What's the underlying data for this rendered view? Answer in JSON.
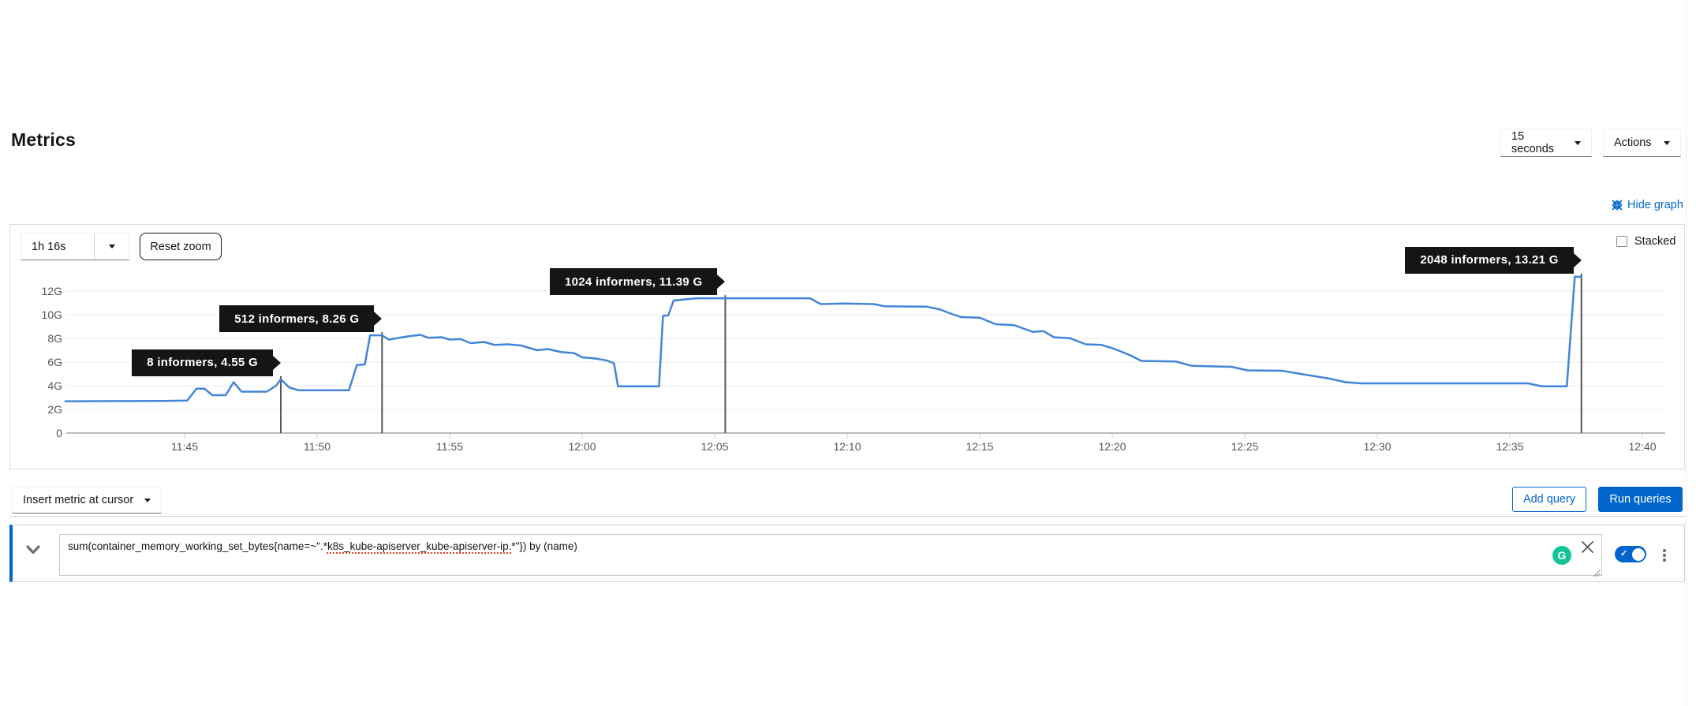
{
  "page": {
    "title": "Metrics"
  },
  "toolbar_top": {
    "interval_select": "15 seconds",
    "actions_label": "Actions"
  },
  "graph_header": {
    "hide_graph": "Hide graph"
  },
  "graph_controls": {
    "timespan": "1h 16s",
    "reset_zoom": "Reset zoom",
    "stacked_label": "Stacked",
    "stacked_checked": false
  },
  "chart_data": {
    "type": "line",
    "title": "",
    "x_unit": "minutes since 11:40",
    "y_unit": "G (bytes, working set memory)",
    "ylim": [
      0,
      14
    ],
    "grid": true,
    "line_color": "#4285d6",
    "annotation_line_color": "#55565a",
    "y_ticks": [
      {
        "value": 0,
        "label": "0"
      },
      {
        "value": 2,
        "label": "2G"
      },
      {
        "value": 4,
        "label": "4G"
      },
      {
        "value": 6,
        "label": "6G"
      },
      {
        "value": 8,
        "label": "8G"
      },
      {
        "value": 10,
        "label": "10G"
      },
      {
        "value": 12,
        "label": "12G"
      }
    ],
    "x_ticks": [
      {
        "min": 5,
        "label": "11:45"
      },
      {
        "min": 10,
        "label": "11:50"
      },
      {
        "min": 15,
        "label": "11:55"
      },
      {
        "min": 20,
        "label": "12:00"
      },
      {
        "min": 25,
        "label": "12:05"
      },
      {
        "min": 30,
        "label": "12:10"
      },
      {
        "min": 35,
        "label": "12:15"
      },
      {
        "min": 40,
        "label": "12:20"
      },
      {
        "min": 45,
        "label": "12:25"
      },
      {
        "min": 50,
        "label": "12:30"
      },
      {
        "min": 55,
        "label": "12:35"
      },
      {
        "min": 60,
        "label": "12:40"
      }
    ],
    "points": [
      [
        0.5,
        2.68
      ],
      [
        2.0,
        2.7
      ],
      [
        4.2,
        2.72
      ],
      [
        5.1,
        2.75
      ],
      [
        5.45,
        3.75
      ],
      [
        5.75,
        3.75
      ],
      [
        6.05,
        3.2
      ],
      [
        6.55,
        3.2
      ],
      [
        6.85,
        4.3
      ],
      [
        7.15,
        3.5
      ],
      [
        8.1,
        3.5
      ],
      [
        8.45,
        4.0
      ],
      [
        8.63,
        4.55
      ],
      [
        8.95,
        3.85
      ],
      [
        9.3,
        3.62
      ],
      [
        11.2,
        3.62
      ],
      [
        11.5,
        5.75
      ],
      [
        11.8,
        5.8
      ],
      [
        12.0,
        8.26
      ],
      [
        12.45,
        8.26
      ],
      [
        12.7,
        7.9
      ],
      [
        13.1,
        8.05
      ],
      [
        13.5,
        8.2
      ],
      [
        13.9,
        8.3
      ],
      [
        14.2,
        8.05
      ],
      [
        14.7,
        8.1
      ],
      [
        15.0,
        7.9
      ],
      [
        15.4,
        7.95
      ],
      [
        15.8,
        7.6
      ],
      [
        16.3,
        7.7
      ],
      [
        16.7,
        7.45
      ],
      [
        17.2,
        7.5
      ],
      [
        17.7,
        7.4
      ],
      [
        18.3,
        7.0
      ],
      [
        18.7,
        7.1
      ],
      [
        19.2,
        6.85
      ],
      [
        19.7,
        6.75
      ],
      [
        20.0,
        6.4
      ],
      [
        20.5,
        6.3
      ],
      [
        20.9,
        6.15
      ],
      [
        21.2,
        5.9
      ],
      [
        21.35,
        3.95
      ],
      [
        22.9,
        3.95
      ],
      [
        23.05,
        9.9
      ],
      [
        23.25,
        9.95
      ],
      [
        23.45,
        11.2
      ],
      [
        23.9,
        11.3
      ],
      [
        24.3,
        11.39
      ],
      [
        28.6,
        11.39
      ],
      [
        29.0,
        10.9
      ],
      [
        29.9,
        10.95
      ],
      [
        31.0,
        10.9
      ],
      [
        31.4,
        10.72
      ],
      [
        33.0,
        10.68
      ],
      [
        33.5,
        10.45
      ],
      [
        33.9,
        10.1
      ],
      [
        34.3,
        9.8
      ],
      [
        35.0,
        9.75
      ],
      [
        35.6,
        9.2
      ],
      [
        36.3,
        9.12
      ],
      [
        37.0,
        8.55
      ],
      [
        37.4,
        8.62
      ],
      [
        37.8,
        8.1
      ],
      [
        38.4,
        8.02
      ],
      [
        39.0,
        7.5
      ],
      [
        39.6,
        7.45
      ],
      [
        40.1,
        7.1
      ],
      [
        40.7,
        6.55
      ],
      [
        41.1,
        6.1
      ],
      [
        42.4,
        6.05
      ],
      [
        43.0,
        5.68
      ],
      [
        44.5,
        5.6
      ],
      [
        45.1,
        5.3
      ],
      [
        46.4,
        5.27
      ],
      [
        47.1,
        5.0
      ],
      [
        48.2,
        4.6
      ],
      [
        48.8,
        4.3
      ],
      [
        49.4,
        4.2
      ],
      [
        55.7,
        4.2
      ],
      [
        56.2,
        3.95
      ],
      [
        57.15,
        3.95
      ],
      [
        57.45,
        13.21
      ],
      [
        57.7,
        13.21
      ]
    ],
    "annotations": [
      {
        "label": "8 informers, 4.55 G",
        "time_min": 8.63,
        "value": 4.55
      },
      {
        "label": "512 informers, 8.26 G",
        "time_min": 12.45,
        "value": 8.26
      },
      {
        "label": "1024 informers, 11.39 G",
        "time_min": 25.4,
        "value": 11.39
      },
      {
        "label": "2048 informers, 13.21 G",
        "time_min": 57.7,
        "value": 13.21
      }
    ]
  },
  "query_toolbar": {
    "insert_metric": "Insert metric at cursor",
    "add_query": "Add query",
    "run_queries": "Run queries"
  },
  "query_row": {
    "text_before": "sum(container_memory_working_set_bytes{name=~\".*",
    "text_flagged": "k8s_kube-apiserver_kube-apiserver-ip.",
    "text_after": "*\"}) by (name)",
    "grammarly_letter": "G",
    "toggle_on": true
  }
}
